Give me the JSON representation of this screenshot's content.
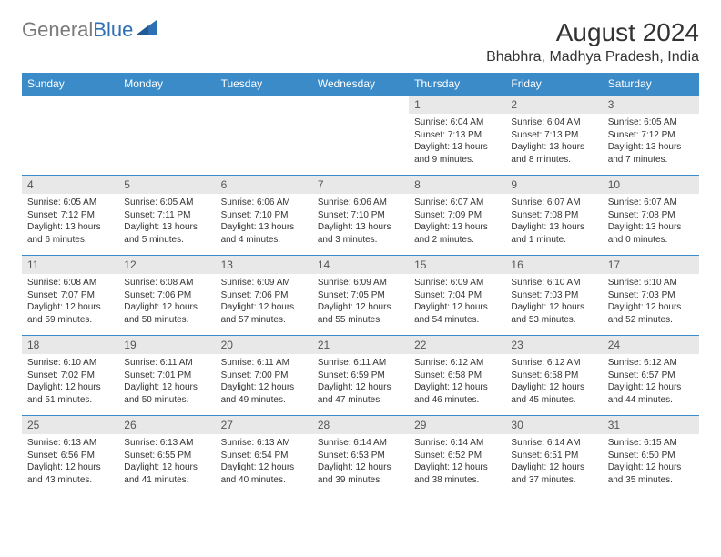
{
  "logo": {
    "gray": "General",
    "blue": "Blue"
  },
  "title": "August 2024",
  "location": "Bhabhra, Madhya Pradesh, India",
  "colors": {
    "header_bg": "#3b8bc9",
    "header_text": "#ffffff",
    "daynum_bg": "#e8e8e8",
    "border": "#3b8bc9",
    "logo_gray": "#7a7a7a",
    "logo_blue": "#2d6fb5"
  },
  "day_headers": [
    "Sunday",
    "Monday",
    "Tuesday",
    "Wednesday",
    "Thursday",
    "Friday",
    "Saturday"
  ],
  "weeks": [
    [
      null,
      null,
      null,
      null,
      {
        "n": "1",
        "sr": "6:04 AM",
        "ss": "7:13 PM",
        "dl": "13 hours and 9 minutes."
      },
      {
        "n": "2",
        "sr": "6:04 AM",
        "ss": "7:13 PM",
        "dl": "13 hours and 8 minutes."
      },
      {
        "n": "3",
        "sr": "6:05 AM",
        "ss": "7:12 PM",
        "dl": "13 hours and 7 minutes."
      }
    ],
    [
      {
        "n": "4",
        "sr": "6:05 AM",
        "ss": "7:12 PM",
        "dl": "13 hours and 6 minutes."
      },
      {
        "n": "5",
        "sr": "6:05 AM",
        "ss": "7:11 PM",
        "dl": "13 hours and 5 minutes."
      },
      {
        "n": "6",
        "sr": "6:06 AM",
        "ss": "7:10 PM",
        "dl": "13 hours and 4 minutes."
      },
      {
        "n": "7",
        "sr": "6:06 AM",
        "ss": "7:10 PM",
        "dl": "13 hours and 3 minutes."
      },
      {
        "n": "8",
        "sr": "6:07 AM",
        "ss": "7:09 PM",
        "dl": "13 hours and 2 minutes."
      },
      {
        "n": "9",
        "sr": "6:07 AM",
        "ss": "7:08 PM",
        "dl": "13 hours and 1 minute."
      },
      {
        "n": "10",
        "sr": "6:07 AM",
        "ss": "7:08 PM",
        "dl": "13 hours and 0 minutes."
      }
    ],
    [
      {
        "n": "11",
        "sr": "6:08 AM",
        "ss": "7:07 PM",
        "dl": "12 hours and 59 minutes."
      },
      {
        "n": "12",
        "sr": "6:08 AM",
        "ss": "7:06 PM",
        "dl": "12 hours and 58 minutes."
      },
      {
        "n": "13",
        "sr": "6:09 AM",
        "ss": "7:06 PM",
        "dl": "12 hours and 57 minutes."
      },
      {
        "n": "14",
        "sr": "6:09 AM",
        "ss": "7:05 PM",
        "dl": "12 hours and 55 minutes."
      },
      {
        "n": "15",
        "sr": "6:09 AM",
        "ss": "7:04 PM",
        "dl": "12 hours and 54 minutes."
      },
      {
        "n": "16",
        "sr": "6:10 AM",
        "ss": "7:03 PM",
        "dl": "12 hours and 53 minutes."
      },
      {
        "n": "17",
        "sr": "6:10 AM",
        "ss": "7:03 PM",
        "dl": "12 hours and 52 minutes."
      }
    ],
    [
      {
        "n": "18",
        "sr": "6:10 AM",
        "ss": "7:02 PM",
        "dl": "12 hours and 51 minutes."
      },
      {
        "n": "19",
        "sr": "6:11 AM",
        "ss": "7:01 PM",
        "dl": "12 hours and 50 minutes."
      },
      {
        "n": "20",
        "sr": "6:11 AM",
        "ss": "7:00 PM",
        "dl": "12 hours and 49 minutes."
      },
      {
        "n": "21",
        "sr": "6:11 AM",
        "ss": "6:59 PM",
        "dl": "12 hours and 47 minutes."
      },
      {
        "n": "22",
        "sr": "6:12 AM",
        "ss": "6:58 PM",
        "dl": "12 hours and 46 minutes."
      },
      {
        "n": "23",
        "sr": "6:12 AM",
        "ss": "6:58 PM",
        "dl": "12 hours and 45 minutes."
      },
      {
        "n": "24",
        "sr": "6:12 AM",
        "ss": "6:57 PM",
        "dl": "12 hours and 44 minutes."
      }
    ],
    [
      {
        "n": "25",
        "sr": "6:13 AM",
        "ss": "6:56 PM",
        "dl": "12 hours and 43 minutes."
      },
      {
        "n": "26",
        "sr": "6:13 AM",
        "ss": "6:55 PM",
        "dl": "12 hours and 41 minutes."
      },
      {
        "n": "27",
        "sr": "6:13 AM",
        "ss": "6:54 PM",
        "dl": "12 hours and 40 minutes."
      },
      {
        "n": "28",
        "sr": "6:14 AM",
        "ss": "6:53 PM",
        "dl": "12 hours and 39 minutes."
      },
      {
        "n": "29",
        "sr": "6:14 AM",
        "ss": "6:52 PM",
        "dl": "12 hours and 38 minutes."
      },
      {
        "n": "30",
        "sr": "6:14 AM",
        "ss": "6:51 PM",
        "dl": "12 hours and 37 minutes."
      },
      {
        "n": "31",
        "sr": "6:15 AM",
        "ss": "6:50 PM",
        "dl": "12 hours and 35 minutes."
      }
    ]
  ],
  "labels": {
    "sunrise": "Sunrise: ",
    "sunset": "Sunset: ",
    "daylight": "Daylight: "
  }
}
